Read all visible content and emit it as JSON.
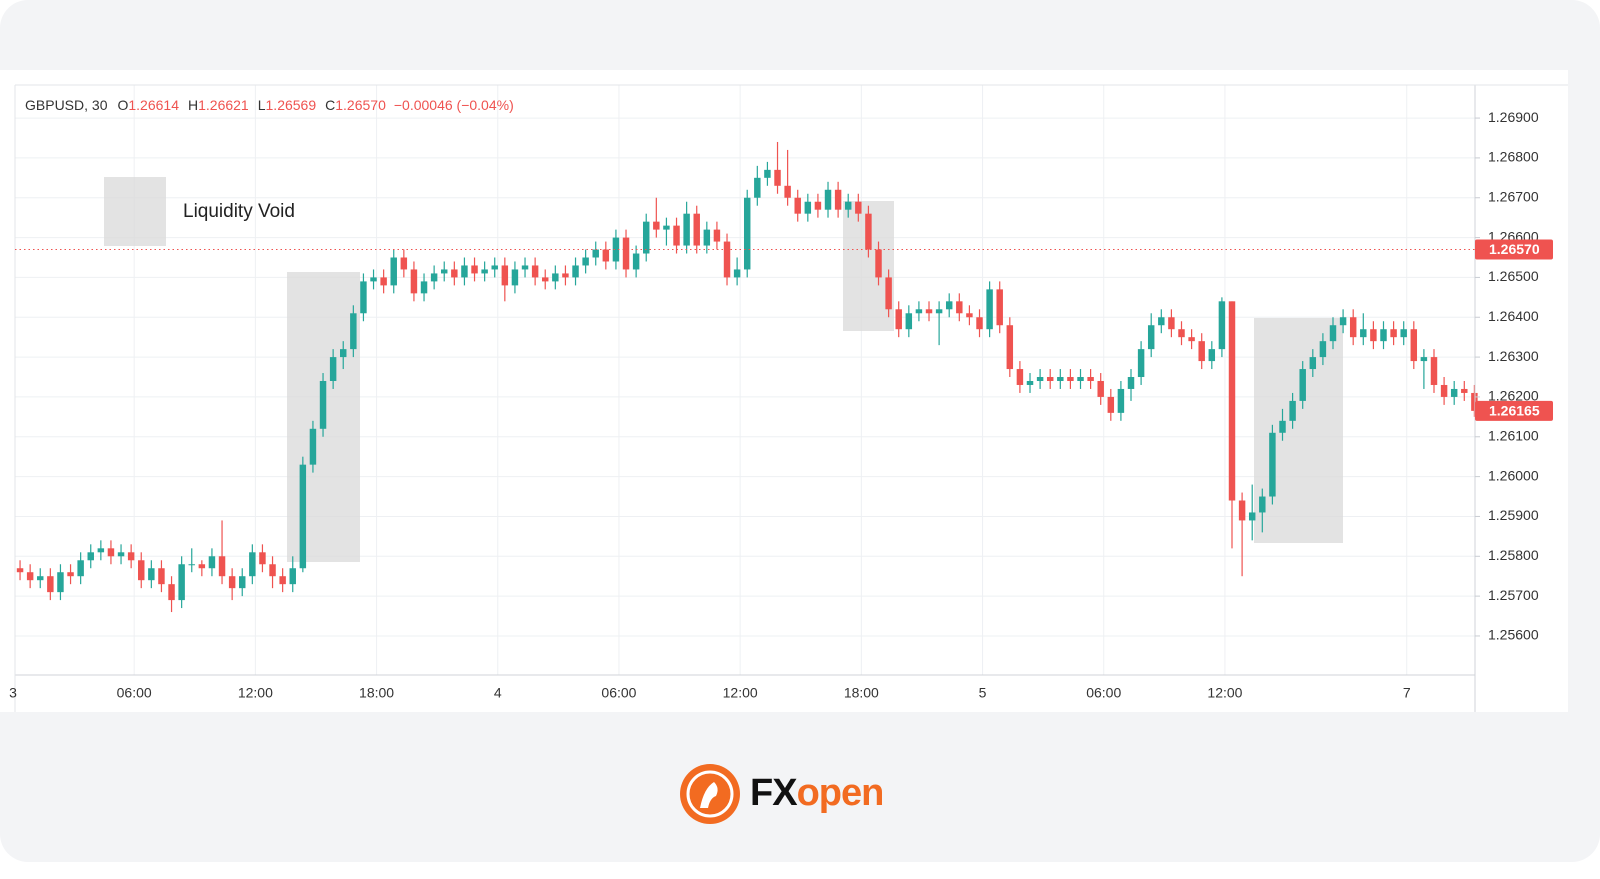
{
  "chart_data": {
    "type": "candlestick",
    "symbol": "GBPUSD, 30",
    "ohlc_legend": [
      {
        "key": "O",
        "value": "1.26614"
      },
      {
        "key": "H",
        "value": "1.26621"
      },
      {
        "key": "L",
        "value": "1.26569"
      },
      {
        "key": "C",
        "value": "1.26570"
      }
    ],
    "change": "−0.00046 (−0.04%)",
    "annotation": "Liquidity Void",
    "up_color": "#26a69a",
    "down_color": "#ef5350",
    "grid": true,
    "ylim": [
      1.25502,
      1.26983
    ],
    "yticks": [
      {
        "value": 1.256,
        "label": "1.25600"
      },
      {
        "value": 1.257,
        "label": "1.25700"
      },
      {
        "value": 1.258,
        "label": "1.25800"
      },
      {
        "value": 1.259,
        "label": "1.25900"
      },
      {
        "value": 1.26,
        "label": "1.26000"
      },
      {
        "value": 1.261,
        "label": "1.26100"
      },
      {
        "value": 1.262,
        "label": "1.26200"
      },
      {
        "value": 1.263,
        "label": "1.26300"
      },
      {
        "value": 1.264,
        "label": "1.26400"
      },
      {
        "value": 1.265,
        "label": "1.26500"
      },
      {
        "value": 1.266,
        "label": "1.26600"
      },
      {
        "value": 1.267,
        "label": "1.26700"
      },
      {
        "value": 1.268,
        "label": "1.26800"
      },
      {
        "value": 1.269,
        "label": "1.26900"
      }
    ],
    "xlim": [
      -0.5,
      144.06
    ],
    "xticks": [
      {
        "value": -0.7,
        "label": "3"
      },
      {
        "value": 11.3,
        "label": "06:00"
      },
      {
        "value": 23.3,
        "label": "12:00"
      },
      {
        "value": 35.3,
        "label": "18:00"
      },
      {
        "value": 47.3,
        "label": "4"
      },
      {
        "value": 59.3,
        "label": "06:00"
      },
      {
        "value": 71.3,
        "label": "12:00"
      },
      {
        "value": 83.3,
        "label": "18:00"
      },
      {
        "value": 95.3,
        "label": "5"
      },
      {
        "value": 107.3,
        "label": "06:00"
      },
      {
        "value": 119.3,
        "label": "12:00"
      },
      {
        "value": 137.3,
        "label": "7"
      }
    ],
    "price_lines": [
      {
        "value": 1.2657,
        "label": "1.26570",
        "dotted": true
      },
      {
        "value": 1.26165,
        "label": "1.26165",
        "dotted": false
      }
    ],
    "open": [
      1.2577,
      1.2576,
      1.2574,
      1.2575,
      1.2571,
      1.2576,
      1.2575,
      1.2579,
      1.2581,
      1.2582,
      1.258,
      1.2581,
      1.2579,
      1.2574,
      1.2577,
      1.2573,
      1.2569,
      1.2578,
      1.2578,
      1.2577,
      1.258,
      1.2575,
      1.2572,
      1.2575,
      1.2581,
      1.2578,
      1.2575,
      1.2573,
      1.2577,
      1.2603,
      1.2612,
      1.2624,
      1.263,
      1.2632,
      1.2641,
      1.2649,
      1.265,
      1.2648,
      1.2655,
      1.2652,
      1.2646,
      1.2649,
      1.2651,
      1.2652,
      1.265,
      1.2653,
      1.2651,
      1.2652,
      1.2653,
      1.2648,
      1.2652,
      1.2653,
      1.265,
      1.2649,
      1.2651,
      1.265,
      1.2653,
      1.2655,
      1.2657,
      1.2654,
      1.266,
      1.2652,
      1.2656,
      1.2664,
      1.2662,
      1.2663,
      1.2658,
      1.2666,
      1.2658,
      1.2662,
      1.2659,
      1.265,
      1.2652,
      1.267,
      1.2675,
      1.2677,
      1.2673,
      1.267,
      1.2666,
      1.2669,
      1.2667,
      1.2672,
      1.2667,
      1.2669,
      1.2666,
      1.2657,
      1.265,
      1.2642,
      1.2637,
      1.2641,
      1.2642,
      1.2641,
      1.2642,
      1.2644,
      1.2641,
      1.264,
      1.2637,
      1.2647,
      1.2638,
      1.2627,
      1.2623,
      1.2624,
      1.2625,
      1.2624,
      1.2625,
      1.2624,
      1.2625,
      1.2624,
      1.262,
      1.2616,
      1.2622,
      1.2625,
      1.2632,
      1.2638,
      1.264,
      1.2637,
      1.2635,
      1.2634,
      1.2629,
      1.2632,
      1.2644,
      1.2594,
      1.2589,
      1.2591,
      1.2595,
      1.2611,
      1.2614,
      1.2619,
      1.2627,
      1.263,
      1.2634,
      1.2638,
      1.264,
      1.2635,
      1.2637,
      1.2634,
      1.2637,
      1.2635,
      1.2637,
      1.2629,
      1.263,
      1.2623,
      1.262,
      1.2622,
      1.2621
    ],
    "high": [
      1.2579,
      1.2578,
      1.2577,
      1.2577,
      1.2578,
      1.2578,
      1.2581,
      1.2583,
      1.2584,
      1.2584,
      1.2583,
      1.2583,
      1.2581,
      1.2579,
      1.2579,
      1.2575,
      1.258,
      1.2582,
      1.2579,
      1.2582,
      1.2589,
      1.2577,
      1.2577,
      1.2583,
      1.2583,
      1.258,
      1.2577,
      1.258,
      1.2605,
      1.2614,
      1.2626,
      1.2632,
      1.2634,
      1.2643,
      1.2651,
      1.2652,
      1.2652,
      1.2657,
      1.2657,
      1.2654,
      1.2651,
      1.2653,
      1.2654,
      1.2654,
      1.2655,
      1.2655,
      1.2654,
      1.2655,
      1.2655,
      1.2654,
      1.2655,
      1.2655,
      1.2652,
      1.2653,
      1.2653,
      1.2655,
      1.2657,
      1.2659,
      1.2659,
      1.2662,
      1.2662,
      1.2658,
      1.2666,
      1.267,
      1.2665,
      1.2665,
      1.2669,
      1.2668,
      1.2664,
      1.2664,
      1.2661,
      1.2655,
      1.2672,
      1.2678,
      1.2679,
      1.2684,
      1.2682,
      1.2672,
      1.2671,
      1.2671,
      1.2674,
      1.2674,
      1.2671,
      1.2671,
      1.2668,
      1.2659,
      1.2652,
      1.2644,
      1.2643,
      1.2644,
      1.2644,
      1.2644,
      1.2646,
      1.2646,
      1.2643,
      1.2642,
      1.2649,
      1.2649,
      1.264,
      1.2629,
      1.2626,
      1.2627,
      1.2627,
      1.2627,
      1.2627,
      1.2627,
      1.2627,
      1.2626,
      1.2622,
      1.2624,
      1.2627,
      1.2634,
      1.2641,
      1.2642,
      1.2642,
      1.2639,
      1.2637,
      1.2636,
      1.2634,
      1.2645,
      1.2644,
      1.2596,
      1.2598,
      1.2597,
      1.2613,
      1.2617,
      1.2621,
      1.2629,
      1.2632,
      1.2636,
      1.264,
      1.2642,
      1.2642,
      1.2641,
      1.2639,
      1.2639,
      1.2639,
      1.2639,
      1.2639,
      1.2632,
      1.2632,
      1.2625,
      1.2624,
      1.2624,
      1.2623
    ],
    "low": [
      1.2574,
      1.2572,
      1.2572,
      1.2569,
      1.2569,
      1.2573,
      1.2573,
      1.2577,
      1.2579,
      1.2578,
      1.2578,
      1.2577,
      1.2572,
      1.2572,
      1.2571,
      1.2566,
      1.2567,
      1.2576,
      1.2575,
      1.2575,
      1.2573,
      1.2569,
      1.257,
      1.2573,
      1.2576,
      1.2572,
      1.2571,
      1.2571,
      1.2576,
      1.2601,
      1.261,
      1.2622,
      1.2627,
      1.263,
      1.2639,
      1.2647,
      1.2646,
      1.2646,
      1.265,
      1.2644,
      1.2644,
      1.2647,
      1.2649,
      1.2648,
      1.2648,
      1.2649,
      1.2649,
      1.265,
      1.2644,
      1.2646,
      1.265,
      1.2648,
      1.2647,
      1.2647,
      1.2648,
      1.2648,
      1.2651,
      1.2653,
      1.2652,
      1.2652,
      1.265,
      1.265,
      1.2654,
      1.266,
      1.2658,
      1.2656,
      1.2656,
      1.2656,
      1.2656,
      1.2657,
      1.2648,
      1.2648,
      1.265,
      1.2668,
      1.2673,
      1.2671,
      1.2668,
      1.2664,
      1.2664,
      1.2665,
      1.2665,
      1.2665,
      1.2665,
      1.2664,
      1.2655,
      1.2648,
      1.264,
      1.2635,
      1.2635,
      1.2639,
      1.2639,
      1.2633,
      1.264,
      1.2639,
      1.2638,
      1.2635,
      1.2635,
      1.2636,
      1.2625,
      1.2621,
      1.2621,
      1.2622,
      1.2622,
      1.2622,
      1.2622,
      1.2622,
      1.2622,
      1.2618,
      1.2614,
      1.2614,
      1.2619,
      1.2623,
      1.263,
      1.2636,
      1.2635,
      1.2633,
      1.2632,
      1.2627,
      1.2627,
      1.263,
      1.2582,
      1.2575,
      1.2584,
      1.2586,
      1.2593,
      1.2609,
      1.2612,
      1.2617,
      1.2625,
      1.2628,
      1.2632,
      1.2636,
      1.2633,
      1.2633,
      1.2632,
      1.2632,
      1.2633,
      1.2633,
      1.2627,
      1.2622,
      1.2621,
      1.2618,
      1.2618,
      1.2619,
      1.2615
    ],
    "close": [
      1.2576,
      1.2574,
      1.2575,
      1.2571,
      1.2576,
      1.2575,
      1.2579,
      1.2581,
      1.2582,
      1.258,
      1.2581,
      1.2579,
      1.2574,
      1.2577,
      1.2573,
      1.2569,
      1.2578,
      1.2578,
      1.2577,
      1.258,
      1.2575,
      1.2572,
      1.2575,
      1.2581,
      1.2578,
      1.2575,
      1.2573,
      1.2577,
      1.2603,
      1.2612,
      1.2624,
      1.263,
      1.2632,
      1.2641,
      1.2649,
      1.265,
      1.2648,
      1.2655,
      1.2652,
      1.2646,
      1.2649,
      1.2651,
      1.2652,
      1.265,
      1.2653,
      1.2651,
      1.2652,
      1.2653,
      1.2648,
      1.2652,
      1.2653,
      1.265,
      1.2649,
      1.2651,
      1.265,
      1.2653,
      1.2655,
      1.2657,
      1.2654,
      1.266,
      1.2652,
      1.2656,
      1.2664,
      1.2662,
      1.2663,
      1.2658,
      1.2666,
      1.2658,
      1.2662,
      1.2659,
      1.265,
      1.2652,
      1.267,
      1.2675,
      1.2677,
      1.2673,
      1.267,
      1.2666,
      1.2669,
      1.2667,
      1.2672,
      1.2667,
      1.2669,
      1.2666,
      1.2657,
      1.265,
      1.2642,
      1.2637,
      1.2641,
      1.2642,
      1.2641,
      1.2642,
      1.2644,
      1.2641,
      1.264,
      1.2637,
      1.2647,
      1.2638,
      1.2627,
      1.2623,
      1.2624,
      1.2625,
      1.2624,
      1.2625,
      1.2624,
      1.2625,
      1.2624,
      1.262,
      1.2616,
      1.2622,
      1.2625,
      1.2632,
      1.2638,
      1.264,
      1.2637,
      1.2635,
      1.2634,
      1.2629,
      1.2632,
      1.2644,
      1.2594,
      1.2589,
      1.2591,
      1.2595,
      1.2611,
      1.2614,
      1.2619,
      1.2627,
      1.263,
      1.2634,
      1.2638,
      1.264,
      1.2635,
      1.2637,
      1.2634,
      1.2637,
      1.2635,
      1.2637,
      1.2629,
      1.263,
      1.2623,
      1.262,
      1.2622,
      1.2621,
      1.26165
    ]
  },
  "brand": {
    "prefix": "FX",
    "suffix": "open"
  }
}
